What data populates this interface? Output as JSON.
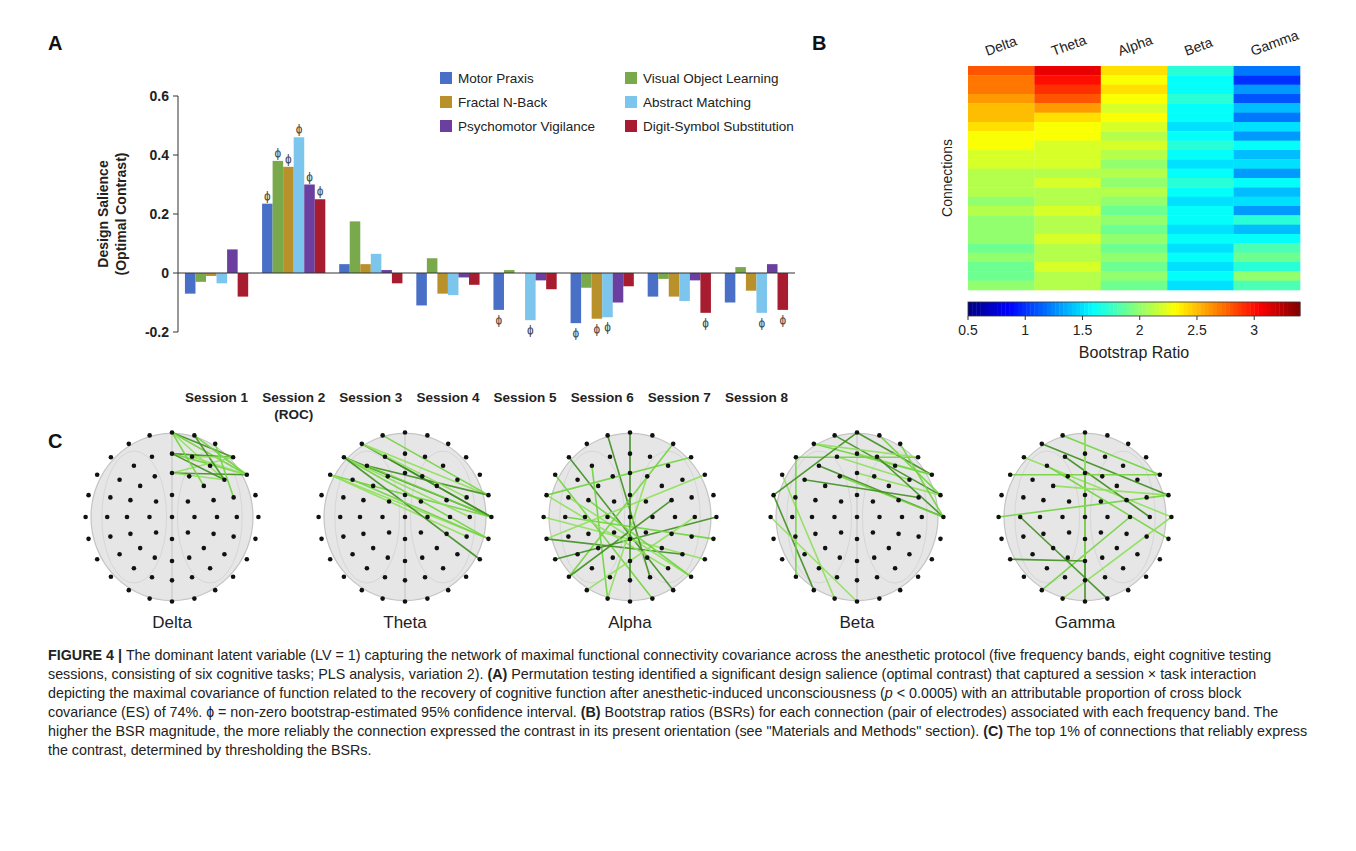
{
  "chart_data": [
    {
      "type": "bar",
      "panel_label": "A",
      "ylabel": "Design Salience (Optimal Contrast)",
      "categories": [
        "Session 1",
        "Session 2 (ROC)",
        "Session 3",
        "Session 4",
        "Session 5",
        "Session 6",
        "Session 7",
        "Session 8"
      ],
      "series": [
        {
          "name": "Motor Praxis",
          "color": "#4a6fc7",
          "values": [
            -0.07,
            0.235,
            0.03,
            -0.11,
            -0.125,
            -0.17,
            -0.08,
            -0.1
          ],
          "significant": [
            false,
            true,
            false,
            false,
            true,
            true,
            false,
            false
          ]
        },
        {
          "name": "Visual Object Learning",
          "color": "#79a94a",
          "values": [
            -0.03,
            0.38,
            0.175,
            0.05,
            0.01,
            -0.05,
            -0.02,
            0.02
          ],
          "significant": [
            false,
            true,
            false,
            false,
            false,
            false,
            false,
            false
          ]
        },
        {
          "name": "Fractal N-Back",
          "color": "#b8912b",
          "values": [
            -0.01,
            0.36,
            0.03,
            -0.07,
            0,
            -0.155,
            -0.08,
            -0.06
          ],
          "significant": [
            false,
            true,
            false,
            false,
            false,
            true,
            false,
            false
          ]
        },
        {
          "name": "Abstract Matching",
          "color": "#7cc5ec",
          "values": [
            -0.035,
            0.46,
            0.065,
            -0.075,
            -0.16,
            -0.15,
            -0.095,
            -0.135
          ],
          "significant": [
            false,
            true,
            false,
            false,
            true,
            true,
            false,
            true
          ]
        },
        {
          "name": "Psychomotor Vigilance",
          "color": "#6a3fa0",
          "values": [
            0.08,
            0.3,
            0.01,
            -0.015,
            -0.025,
            -0.1,
            -0.025,
            0.03
          ],
          "significant": [
            false,
            true,
            false,
            false,
            false,
            false,
            false,
            false
          ]
        },
        {
          "name": "Digit-Symbol Substitution",
          "color": "#a81c30",
          "values": [
            -0.08,
            0.25,
            -0.035,
            -0.04,
            -0.055,
            -0.045,
            -0.135,
            -0.125
          ],
          "significant": [
            false,
            true,
            false,
            false,
            false,
            false,
            true,
            true
          ]
        }
      ],
      "significance_symbol": "ɸ",
      "ylim": [
        -0.2,
        0.6
      ],
      "yticks": [
        -0.2,
        0,
        0.2,
        0.4,
        0.6
      ],
      "legend": "top-right",
      "grid": false
    },
    {
      "type": "heatmap",
      "panel_label": "B",
      "ylabel": "Connections",
      "columns": [
        "Delta",
        "Theta",
        "Alpha",
        "Beta",
        "Gamma"
      ],
      "cells": [
        [
          2.8,
          3.1,
          2.4,
          1.7,
          1.2
        ],
        [
          2.7,
          3.0,
          2.3,
          1.6,
          1.0
        ],
        [
          2.7,
          2.9,
          2.4,
          1.6,
          1.3
        ],
        [
          2.6,
          2.8,
          2.3,
          1.7,
          1.1
        ],
        [
          2.5,
          2.6,
          2.2,
          1.6,
          1.4
        ],
        [
          2.5,
          2.4,
          2.3,
          1.6,
          1.2
        ],
        [
          2.4,
          2.3,
          2.2,
          1.5,
          1.5
        ],
        [
          2.3,
          2.3,
          2.1,
          1.6,
          1.3
        ],
        [
          2.3,
          2.2,
          2.2,
          1.7,
          1.6
        ],
        [
          2.2,
          2.2,
          2.1,
          1.6,
          1.4
        ],
        [
          2.2,
          2.2,
          2.0,
          1.5,
          1.5
        ],
        [
          2.1,
          2.1,
          2.1,
          1.6,
          1.3
        ],
        [
          2.1,
          2.2,
          2.0,
          1.7,
          1.6
        ],
        [
          2.1,
          2.1,
          2.1,
          1.6,
          1.4
        ],
        [
          2.0,
          2.1,
          2.0,
          1.5,
          1.5
        ],
        [
          2.1,
          2.2,
          1.9,
          1.6,
          1.3
        ],
        [
          2.0,
          2.1,
          2.0,
          1.6,
          1.7
        ],
        [
          2.0,
          2.1,
          1.9,
          1.5,
          1.4
        ],
        [
          2.0,
          2.2,
          2.0,
          1.6,
          1.6
        ],
        [
          1.9,
          2.1,
          1.9,
          1.5,
          1.8
        ],
        [
          2.0,
          2.1,
          2.0,
          1.6,
          1.9
        ],
        [
          1.9,
          2.2,
          1.9,
          1.5,
          1.7
        ],
        [
          1.9,
          2.1,
          2.0,
          1.6,
          2.0
        ],
        [
          2.0,
          2.1,
          1.9,
          1.5,
          1.8
        ]
      ],
      "colorbar": {
        "label": "Bootstrap Ratio",
        "range": [
          0.5,
          3.4
        ],
        "ticks": [
          0.5,
          1,
          1.5,
          2,
          2.5,
          3
        ]
      }
    }
  ],
  "networks": {
    "panel_label": "C",
    "bands": [
      {
        "label": "Delta",
        "edges": [
          [
            45,
            48
          ],
          [
            45,
            49
          ],
          [
            45,
            28
          ],
          [
            25,
            48
          ],
          [
            25,
            49
          ],
          [
            9,
            48
          ],
          [
            9,
            49
          ],
          [
            46,
            49
          ],
          [
            26,
            49
          ],
          [
            25,
            28
          ],
          [
            45,
            11
          ],
          [
            9,
            28
          ],
          [
            46,
            28
          ],
          [
            47,
            29
          ],
          [
            26,
            48
          ]
        ]
      },
      {
        "label": "Theta",
        "edges": [
          [
            66,
            51
          ],
          [
            66,
            52
          ],
          [
            67,
            50
          ],
          [
            67,
            51
          ],
          [
            65,
            51
          ],
          [
            65,
            52
          ],
          [
            43,
            50
          ],
          [
            43,
            51
          ],
          [
            66,
            30
          ],
          [
            44,
            51
          ],
          [
            68,
            50
          ],
          [
            65,
            31
          ],
          [
            66,
            53
          ],
          [
            42,
            52
          ],
          [
            67,
            29
          ]
        ]
      },
      {
        "label": "Alpha",
        "edges": [
          [
            66,
            55
          ],
          [
            65,
            56
          ],
          [
            63,
            53
          ],
          [
            62,
            32
          ],
          [
            43,
            58
          ],
          [
            41,
            54
          ],
          [
            68,
            34
          ],
          [
            47,
            60
          ],
          [
            49,
            62
          ],
          [
            51,
            61
          ],
          [
            52,
            40
          ],
          [
            30,
            59
          ],
          [
            12,
            60
          ],
          [
            22,
            54
          ],
          [
            64,
            33
          ],
          [
            45,
            35
          ],
          [
            48,
            64
          ],
          [
            10,
            58
          ]
        ]
      },
      {
        "label": "Beta",
        "edges": [
          [
            45,
            49
          ],
          [
            46,
            50
          ],
          [
            25,
            49
          ],
          [
            68,
            50
          ],
          [
            67,
            49
          ],
          [
            44,
            28
          ],
          [
            43,
            51
          ],
          [
            66,
            48
          ],
          [
            9,
            50
          ],
          [
            26,
            51
          ],
          [
            47,
            51
          ],
          [
            65,
            58
          ],
          [
            64,
            59
          ],
          [
            66,
            60
          ],
          [
            63,
            57
          ],
          [
            45,
            64
          ],
          [
            24,
            51
          ],
          [
            48,
            67
          ],
          [
            42,
            29
          ]
        ]
      },
      {
        "label": "Gamma",
        "edges": [
          [
            67,
            50
          ],
          [
            68,
            49
          ],
          [
            66,
            51
          ],
          [
            44,
            30
          ],
          [
            43,
            52
          ],
          [
            45,
            35
          ],
          [
            9,
            57
          ],
          [
            13,
            59
          ],
          [
            51,
            58
          ],
          [
            40,
            56
          ],
          [
            65,
            49
          ],
          [
            23,
            50
          ],
          [
            17,
            61
          ],
          [
            50,
            63
          ],
          [
            45,
            17
          ]
        ]
      }
    ]
  },
  "caption": [
    {
      "text": "FIGURE 4 | ",
      "style": "bold"
    },
    {
      "text": "The dominant latent variable (LV = 1) capturing the network of maximal functional connectivity covariance across the anesthetic protocol (five frequency bands, eight cognitive testing sessions, consisting of six cognitive tasks; PLS analysis, variation 2). ",
      "style": "normal"
    },
    {
      "text": "(A)",
      "style": "bold"
    },
    {
      "text": " Permutation testing identified a significant design salience (optimal contrast) that captured a session × task interaction depicting the maximal covariance of function related to the recovery of cognitive function after anesthetic-induced unconsciousness (",
      "style": "normal"
    },
    {
      "text": "p",
      "style": "italic"
    },
    {
      "text": " < 0.0005) with an attributable proportion of cross block covariance (ES) of 74%. ɸ = non-zero bootstrap-estimated 95% confidence interval. ",
      "style": "normal"
    },
    {
      "text": "(B)",
      "style": "bold"
    },
    {
      "text": " Bootstrap ratios (BSRs) for each connection (pair of electrodes) associated with each frequency band. The higher the BSR magnitude, the more reliably the connection expressed the contrast in its present orientation (see \"Materials and Methods\" section). ",
      "style": "normal"
    },
    {
      "text": "(C)",
      "style": "bold"
    },
    {
      "text": " The top 1% of connections that reliably express the contrast, determined by thresholding the BSRs.",
      "style": "normal"
    }
  ]
}
